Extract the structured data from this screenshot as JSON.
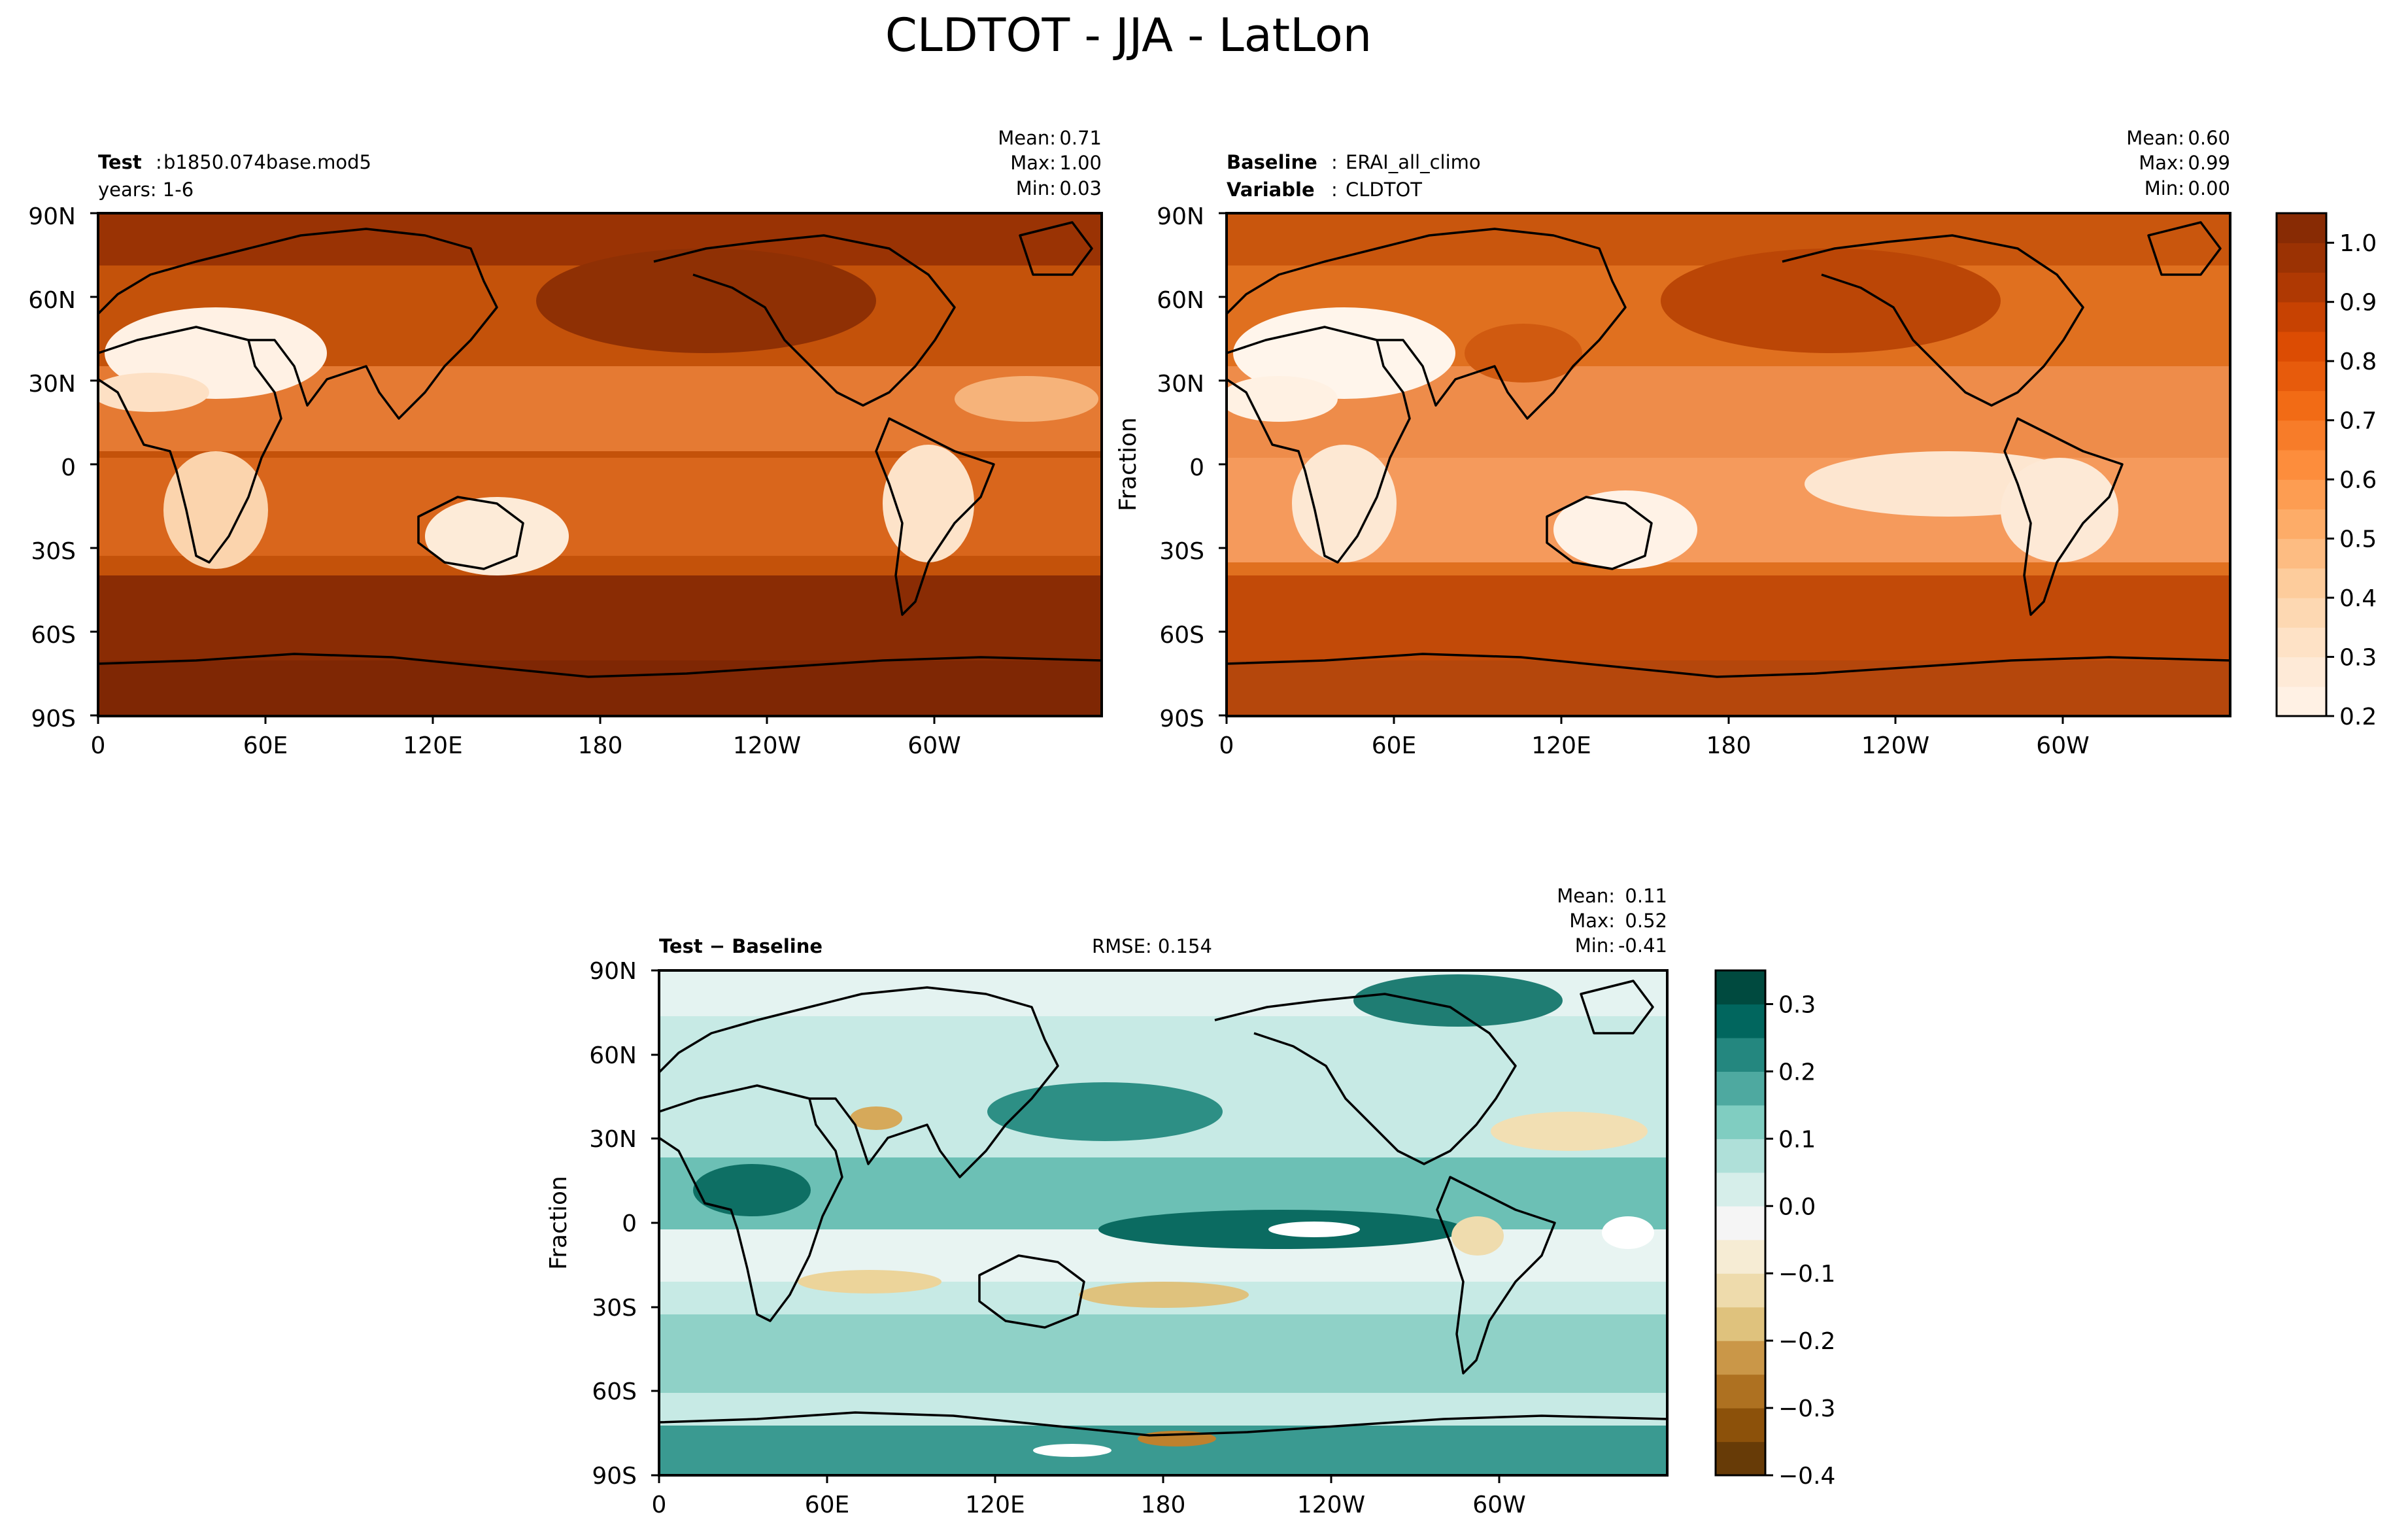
{
  "figure": {
    "title": "CLDTOT - JJA - LatLon"
  },
  "chart_data": [
    {
      "type": "heatmap",
      "panel": "test",
      "header": {
        "label": "Test",
        "value": "b1850.074base.mod5",
        "line2": "years: 1-6"
      },
      "stats": [
        {
          "label": "Mean:",
          "value": "0.71"
        },
        {
          "label": "Max:",
          "value": "1.00"
        },
        {
          "label": "Min:",
          "value": "0.03"
        }
      ],
      "xticks": [
        "0",
        "60E",
        "120E",
        "180",
        "120W",
        "60W"
      ],
      "yticks": [
        "90N",
        "60N",
        "30N",
        "0",
        "30S",
        "60S",
        "90S"
      ],
      "xlim": [
        0,
        360
      ],
      "ylim": [
        -90,
        90
      ],
      "value_range": [
        0.03,
        1.0
      ],
      "colormap": "Oranges"
    },
    {
      "type": "heatmap",
      "panel": "baseline",
      "header": {
        "label": "Baseline",
        "value": "ERAI_all_climo",
        "label2": "Variable",
        "value2": "CLDTOT"
      },
      "stats": [
        {
          "label": "Mean:",
          "value": "0.60"
        },
        {
          "label": "Max:",
          "value": "0.99"
        },
        {
          "label": "Min:",
          "value": "0.00"
        }
      ],
      "xticks": [
        "0",
        "60E",
        "120E",
        "180",
        "120W",
        "60W"
      ],
      "yticks": [
        "90N",
        "60N",
        "30N",
        "0",
        "30S",
        "60S",
        "90S"
      ],
      "xlim": [
        0,
        360
      ],
      "ylim": [
        -90,
        90
      ],
      "value_range": [
        0.0,
        0.99
      ],
      "colormap": "Oranges",
      "ylabel": "Fraction",
      "colorbar": {
        "min": 0.2,
        "max": 1.05,
        "levels": 17,
        "ticks": [
          "0.2",
          "0.3",
          "0.4",
          "0.5",
          "0.6",
          "0.7",
          "0.8",
          "0.9",
          "1.0"
        ],
        "tick_values": [
          0.2,
          0.3,
          0.4,
          0.5,
          0.6,
          0.7,
          0.8,
          0.9,
          1.0
        ]
      }
    },
    {
      "type": "heatmap",
      "panel": "difference",
      "header": {
        "label": "Test − Baseline",
        "rmse": "RMSE: 0.154"
      },
      "stats": [
        {
          "label": "Mean:",
          "value": "0.11"
        },
        {
          "label": "Max:",
          "value": "0.52"
        },
        {
          "label": "Min:",
          "value": "-0.41"
        }
      ],
      "xticks": [
        "0",
        "60E",
        "120E",
        "180",
        "120W",
        "60W"
      ],
      "yticks": [
        "90N",
        "60N",
        "30N",
        "0",
        "30S",
        "60S",
        "90S"
      ],
      "xlim": [
        0,
        360
      ],
      "ylim": [
        -90,
        90
      ],
      "value_range": [
        -0.41,
        0.52
      ],
      "colormap": "BrBG",
      "ylabel": "Fraction",
      "colorbar": {
        "min": -0.4,
        "max": 0.35,
        "levels": 15,
        "ticks": [
          "0.3",
          "0.2",
          "0.1",
          "0.0",
          "−0.1",
          "−0.2",
          "−0.3",
          "−0.4"
        ],
        "tick_values": [
          0.3,
          0.2,
          0.1,
          0.0,
          -0.1,
          -0.2,
          -0.3,
          -0.4
        ]
      }
    }
  ],
  "colors": {
    "oranges": [
      "#fff5eb",
      "#fee6ce",
      "#fdd0a2",
      "#fdae6b",
      "#fd8d3c",
      "#f16913",
      "#d94801",
      "#a63603",
      "#7f2704"
    ],
    "brbg": [
      "#543005",
      "#8c510a",
      "#bf812d",
      "#dfc27d",
      "#f6e8c3",
      "#f5f5f5",
      "#c7eae5",
      "#80cdc1",
      "#35978f",
      "#01665e",
      "#003c30"
    ],
    "land_outline": "#000000"
  }
}
